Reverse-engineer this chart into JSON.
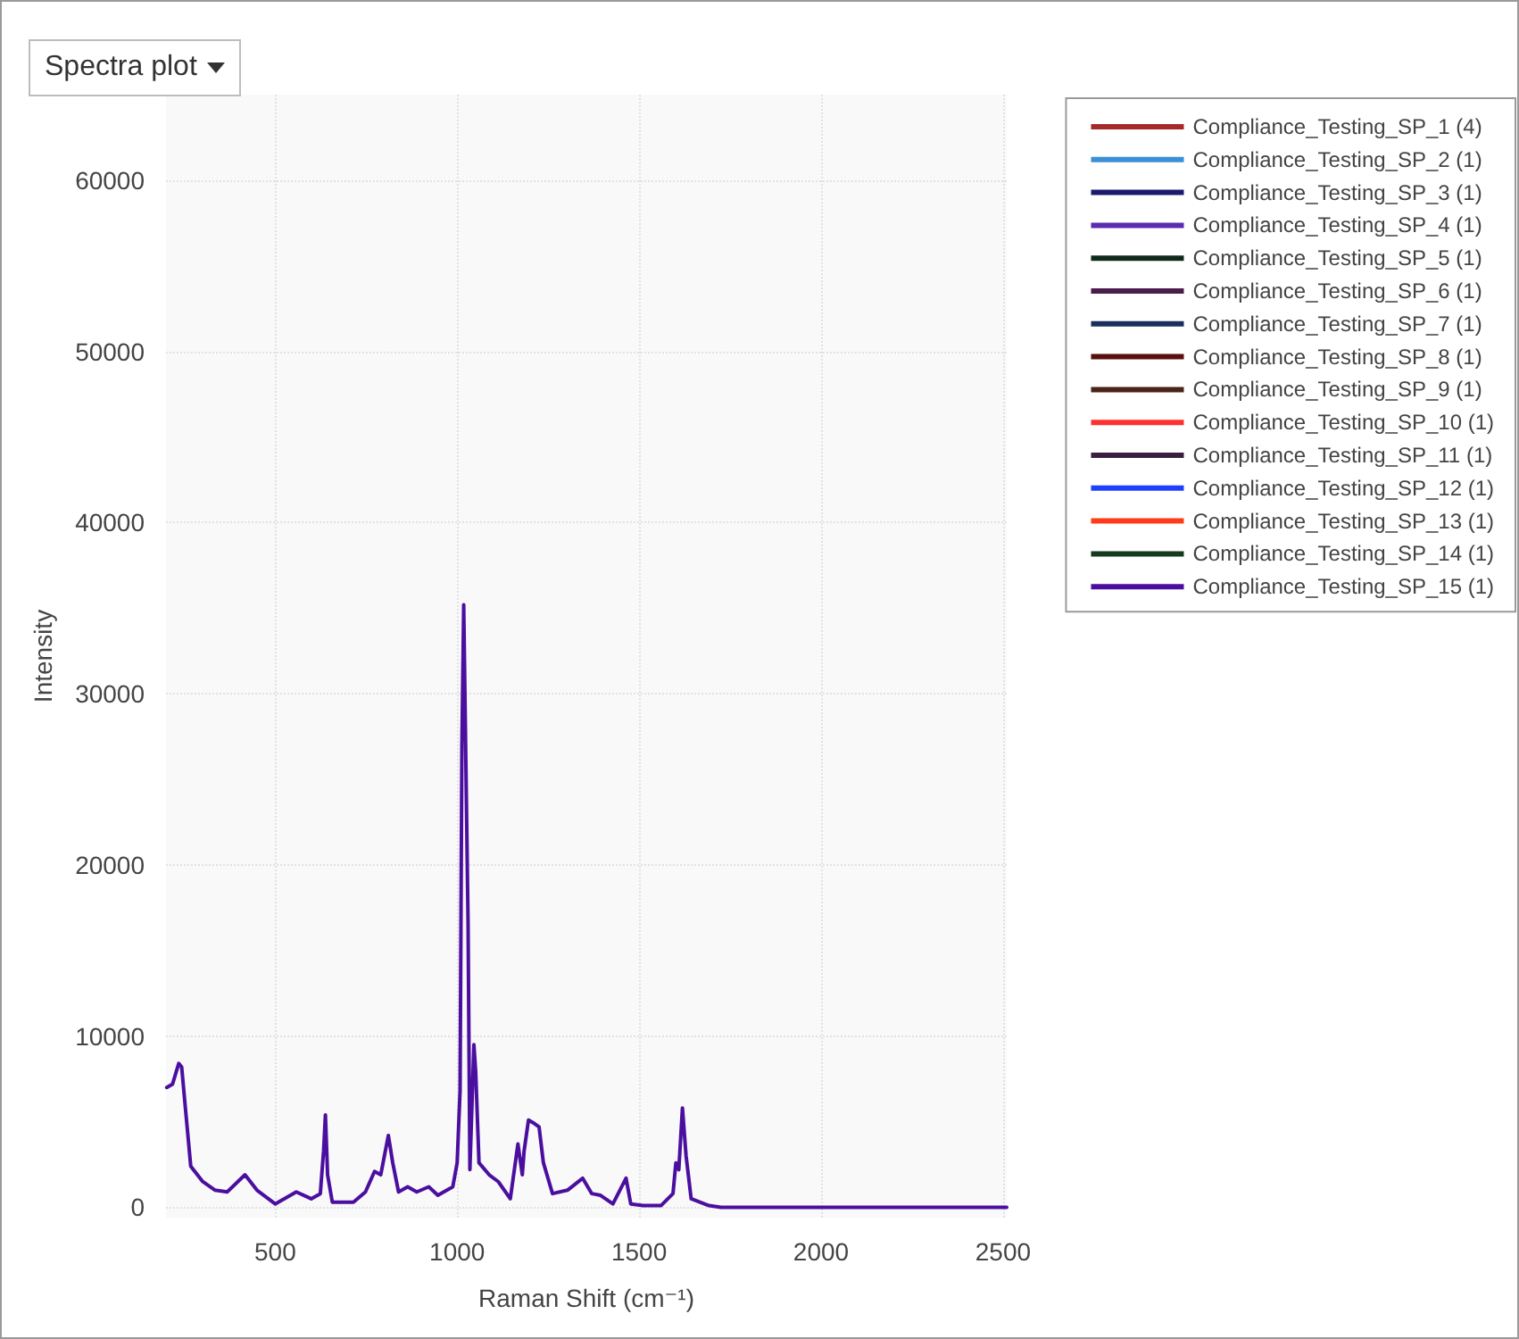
{
  "chart_data": {
    "type": "line",
    "title": "Spectra plot",
    "xlabel": "Raman Shift (cm⁻¹)",
    "ylabel": "Intensity",
    "x": [
      202,
      218,
      235,
      243,
      255,
      268,
      301,
      335,
      368,
      417,
      450,
      500,
      558,
      599,
      624,
      633,
      638,
      644,
      657,
      715,
      748,
      773,
      790,
      811,
      823,
      839,
      864,
      889,
      922,
      947,
      988,
      1000,
      1008,
      1013,
      1018,
      1030,
      1035,
      1046,
      1051,
      1060,
      1088,
      1113,
      1146,
      1167,
      1179,
      1184,
      1196,
      1212,
      1225,
      1237,
      1262,
      1303,
      1345,
      1370,
      1394,
      1428,
      1464,
      1477,
      1511,
      1560,
      1593,
      1601,
      1609,
      1619,
      1629,
      1643,
      1692,
      1725,
      2000,
      2500,
      2510
    ],
    "xlim": [
      200,
      2510
    ],
    "xticks": [
      500,
      1000,
      1500,
      2000,
      2500
    ],
    "ylim": [
      -600,
      65000
    ],
    "yticks": [
      0,
      10000,
      20000,
      30000,
      40000,
      50000,
      60000
    ],
    "grid": true,
    "legend": "top right",
    "marker": "none",
    "line_style": "solid",
    "series": [
      {
        "name": "Compliance_Testing_SP_1 (4)",
        "color": "#a52a2a",
        "values": [
          null,
          null,
          null,
          null,
          null,
          null,
          null,
          null,
          null,
          null,
          null,
          null,
          null,
          null,
          null,
          null,
          null,
          null,
          null,
          null,
          null,
          null,
          null,
          null,
          null,
          null,
          null,
          null,
          null,
          null,
          null,
          null,
          null,
          null,
          null,
          null,
          null,
          null,
          null,
          null,
          null,
          null,
          null,
          null,
          null,
          null,
          null,
          null,
          null,
          null,
          null,
          null,
          null,
          null,
          null,
          null,
          null,
          null,
          null,
          null,
          null,
          null,
          null,
          null,
          null,
          null,
          null,
          null,
          null,
          null,
          null
        ]
      },
      {
        "name": "Compliance_Testing_SP_2 (1)",
        "color": "#3b8fd6",
        "values": [
          null,
          null,
          null,
          null,
          null,
          null,
          null,
          null,
          null,
          null,
          null,
          null,
          null,
          null,
          null,
          null,
          null,
          null,
          null,
          null,
          null,
          null,
          null,
          null,
          null,
          null,
          null,
          null,
          null,
          null,
          null,
          null,
          null,
          null,
          null,
          null,
          null,
          null,
          null,
          null,
          null,
          null,
          null,
          null,
          null,
          null,
          null,
          null,
          null,
          null,
          null,
          null,
          null,
          null,
          null,
          null,
          null,
          null,
          null,
          null,
          null,
          null,
          null,
          null,
          null,
          null,
          null,
          null,
          null,
          null,
          null
        ]
      },
      {
        "name": "Compliance_Testing_SP_3 (1)",
        "color": "#1a1a6e",
        "values": [
          null,
          null,
          null,
          null,
          null,
          null,
          null,
          null,
          null,
          null,
          null,
          null,
          null,
          null,
          null,
          null,
          null,
          null,
          null,
          null,
          null,
          null,
          null,
          null,
          null,
          null,
          null,
          null,
          null,
          null,
          null,
          null,
          null,
          null,
          null,
          null,
          null,
          null,
          null,
          null,
          null,
          null,
          null,
          null,
          null,
          null,
          null,
          null,
          null,
          null,
          null,
          null,
          null,
          null,
          null,
          null,
          null,
          null,
          null,
          null,
          null,
          null,
          null,
          null,
          null,
          null,
          null,
          null,
          null,
          null,
          null
        ]
      },
      {
        "name": "Compliance_Testing_SP_4 (1)",
        "color": "#5b2bb0",
        "values": [
          null,
          null,
          null,
          null,
          null,
          null,
          null,
          null,
          null,
          null,
          null,
          null,
          null,
          null,
          null,
          null,
          null,
          null,
          null,
          null,
          null,
          null,
          null,
          null,
          null,
          null,
          null,
          null,
          null,
          null,
          null,
          null,
          null,
          null,
          null,
          null,
          null,
          null,
          null,
          null,
          null,
          null,
          null,
          null,
          null,
          null,
          null,
          null,
          null,
          null,
          null,
          null,
          null,
          null,
          null,
          null,
          null,
          null,
          null,
          null,
          null,
          null,
          null,
          null,
          null,
          null,
          null,
          null,
          null,
          null,
          null
        ]
      },
      {
        "name": "Compliance_Testing_SP_5 (1)",
        "color": "#0f2a1a",
        "values": [
          null,
          null,
          null,
          null,
          null,
          null,
          null,
          null,
          null,
          null,
          null,
          null,
          null,
          null,
          null,
          null,
          null,
          null,
          null,
          null,
          null,
          null,
          null,
          null,
          null,
          null,
          null,
          null,
          null,
          null,
          null,
          null,
          null,
          null,
          null,
          null,
          null,
          null,
          null,
          null,
          null,
          null,
          null,
          null,
          null,
          null,
          null,
          null,
          null,
          null,
          null,
          null,
          null,
          null,
          null,
          null,
          null,
          null,
          null,
          null,
          null,
          null,
          null,
          null,
          null,
          null,
          null,
          null,
          null,
          null,
          null
        ]
      },
      {
        "name": "Compliance_Testing_SP_6 (1)",
        "color": "#4a1e4a",
        "values": [
          null,
          null,
          null,
          null,
          null,
          null,
          null,
          null,
          null,
          null,
          null,
          null,
          null,
          null,
          null,
          null,
          null,
          null,
          null,
          null,
          null,
          null,
          null,
          null,
          null,
          null,
          null,
          null,
          null,
          null,
          null,
          null,
          null,
          null,
          null,
          null,
          null,
          null,
          null,
          null,
          null,
          null,
          null,
          null,
          null,
          null,
          null,
          null,
          null,
          null,
          null,
          null,
          null,
          null,
          null,
          null,
          null,
          null,
          null,
          null,
          null,
          null,
          null,
          null,
          null,
          null,
          null,
          null,
          null,
          null,
          null
        ]
      },
      {
        "name": "Compliance_Testing_SP_7 (1)",
        "color": "#1b2f5c",
        "values": [
          null,
          null,
          null,
          null,
          null,
          null,
          null,
          null,
          null,
          null,
          null,
          null,
          null,
          null,
          null,
          null,
          null,
          null,
          null,
          null,
          null,
          null,
          null,
          null,
          null,
          null,
          null,
          null,
          null,
          null,
          null,
          null,
          null,
          null,
          null,
          null,
          null,
          null,
          null,
          null,
          null,
          null,
          null,
          null,
          null,
          null,
          null,
          null,
          null,
          null,
          null,
          null,
          null,
          null,
          null,
          null,
          null,
          null,
          null,
          null,
          null,
          null,
          null,
          null,
          null,
          null,
          null,
          null,
          null,
          null,
          null
        ]
      },
      {
        "name": "Compliance_Testing_SP_8 (1)",
        "color": "#5a0f0f",
        "values": [
          null,
          null,
          null,
          null,
          null,
          null,
          null,
          null,
          null,
          null,
          null,
          null,
          null,
          null,
          null,
          null,
          null,
          null,
          null,
          null,
          null,
          null,
          null,
          null,
          null,
          null,
          null,
          null,
          null,
          null,
          null,
          null,
          null,
          null,
          null,
          null,
          null,
          null,
          null,
          null,
          null,
          null,
          null,
          null,
          null,
          null,
          null,
          null,
          null,
          null,
          null,
          null,
          null,
          null,
          null,
          null,
          null,
          null,
          null,
          null,
          null,
          null,
          null,
          null,
          null,
          null,
          null,
          null,
          null,
          null,
          null
        ]
      },
      {
        "name": "Compliance_Testing_SP_9 (1)",
        "color": "#4a2418",
        "values": [
          null,
          null,
          null,
          null,
          null,
          null,
          null,
          null,
          null,
          null,
          null,
          null,
          null,
          null,
          null,
          null,
          null,
          null,
          null,
          null,
          null,
          null,
          null,
          null,
          null,
          null,
          null,
          null,
          null,
          null,
          null,
          null,
          null,
          null,
          null,
          null,
          null,
          null,
          null,
          null,
          null,
          null,
          null,
          null,
          null,
          null,
          null,
          null,
          null,
          null,
          null,
          null,
          null,
          null,
          null,
          null,
          null,
          null,
          null,
          null,
          null,
          null,
          null,
          null,
          null,
          null,
          null,
          null,
          null,
          null,
          null
        ]
      },
      {
        "name": "Compliance_Testing_SP_10 (1)",
        "color": "#ff3030",
        "values": [
          null,
          null,
          null,
          null,
          null,
          null,
          null,
          null,
          null,
          null,
          null,
          null,
          null,
          null,
          null,
          null,
          null,
          null,
          null,
          null,
          null,
          null,
          null,
          null,
          null,
          null,
          null,
          null,
          null,
          null,
          null,
          null,
          null,
          null,
          null,
          null,
          null,
          null,
          null,
          null,
          null,
          null,
          null,
          null,
          null,
          null,
          null,
          null,
          null,
          null,
          null,
          null,
          null,
          null,
          null,
          null,
          null,
          null,
          null,
          null,
          null,
          null,
          null,
          null,
          null,
          null,
          null,
          null,
          null,
          null,
          null
        ]
      },
      {
        "name": "Compliance_Testing_SP_11 (1)",
        "color": "#3a1f40",
        "values": [
          null,
          null,
          null,
          null,
          null,
          null,
          null,
          null,
          null,
          null,
          null,
          null,
          null,
          null,
          null,
          null,
          null,
          null,
          null,
          null,
          null,
          null,
          null,
          null,
          null,
          null,
          null,
          null,
          null,
          null,
          null,
          null,
          null,
          null,
          null,
          null,
          null,
          null,
          null,
          null,
          null,
          null,
          null,
          null,
          null,
          null,
          null,
          null,
          null,
          null,
          null,
          null,
          null,
          null,
          null,
          null,
          null,
          null,
          null,
          null,
          null,
          null,
          null,
          null,
          null,
          null,
          null,
          null,
          null,
          null,
          null
        ]
      },
      {
        "name": "Compliance_Testing_SP_12 (1)",
        "color": "#1f3fff",
        "values": [
          null,
          null,
          null,
          null,
          null,
          null,
          null,
          null,
          null,
          null,
          null,
          null,
          null,
          null,
          null,
          null,
          null,
          null,
          null,
          null,
          null,
          null,
          null,
          null,
          null,
          null,
          null,
          null,
          null,
          null,
          null,
          null,
          null,
          null,
          null,
          null,
          null,
          null,
          null,
          null,
          null,
          null,
          null,
          null,
          null,
          null,
          null,
          null,
          null,
          null,
          null,
          null,
          null,
          null,
          null,
          null,
          null,
          null,
          null,
          null,
          null,
          null,
          null,
          null,
          null,
          null,
          null,
          null,
          null,
          null,
          null
        ]
      },
      {
        "name": "Compliance_Testing_SP_13 (1)",
        "color": "#ff3b1a",
        "values": [
          null,
          null,
          null,
          null,
          null,
          null,
          null,
          null,
          null,
          null,
          null,
          null,
          null,
          null,
          null,
          null,
          null,
          null,
          null,
          null,
          null,
          null,
          null,
          null,
          null,
          null,
          null,
          null,
          null,
          null,
          null,
          null,
          null,
          null,
          null,
          null,
          null,
          null,
          null,
          null,
          null,
          null,
          null,
          null,
          null,
          null,
          null,
          null,
          null,
          null,
          null,
          null,
          null,
          null,
          null,
          null,
          null,
          null,
          null,
          null,
          null,
          null,
          null,
          null,
          null,
          null,
          null,
          null,
          null,
          null,
          null
        ]
      },
      {
        "name": "Compliance_Testing_SP_14 (1)",
        "color": "#153a20",
        "values": [
          null,
          null,
          null,
          null,
          null,
          null,
          null,
          null,
          null,
          null,
          null,
          null,
          null,
          null,
          null,
          null,
          null,
          null,
          null,
          null,
          null,
          null,
          null,
          null,
          null,
          null,
          null,
          null,
          null,
          null,
          null,
          null,
          null,
          null,
          null,
          null,
          null,
          null,
          null,
          null,
          null,
          null,
          null,
          null,
          null,
          null,
          null,
          null,
          null,
          null,
          null,
          null,
          null,
          null,
          null,
          null,
          null,
          null,
          null,
          null,
          null,
          null,
          null,
          null,
          null,
          null,
          null,
          null,
          null,
          null,
          null
        ]
      },
      {
        "name": "Compliance_Testing_SP_15 (1)",
        "color": "#4b0fa0",
        "values": [
          7000,
          7200,
          8400,
          8200,
          5400,
          2400,
          1500,
          1000,
          900,
          1900,
          1000,
          200,
          900,
          500,
          800,
          3300,
          5400,
          1900,
          300,
          300,
          900,
          2100,
          1900,
          4200,
          2600,
          900,
          1200,
          900,
          1200,
          700,
          1200,
          2600,
          6800,
          26900,
          35200,
          16600,
          2200,
          9500,
          7900,
          2600,
          1900,
          1500,
          500,
          3700,
          1900,
          3300,
          5100,
          4900,
          4700,
          2600,
          800,
          1000,
          1700,
          800,
          700,
          200,
          1700,
          200,
          100,
          100,
          800,
          2600,
          2200,
          5800,
          3000,
          500,
          100,
          0,
          0,
          0,
          0
        ]
      }
    ]
  }
}
